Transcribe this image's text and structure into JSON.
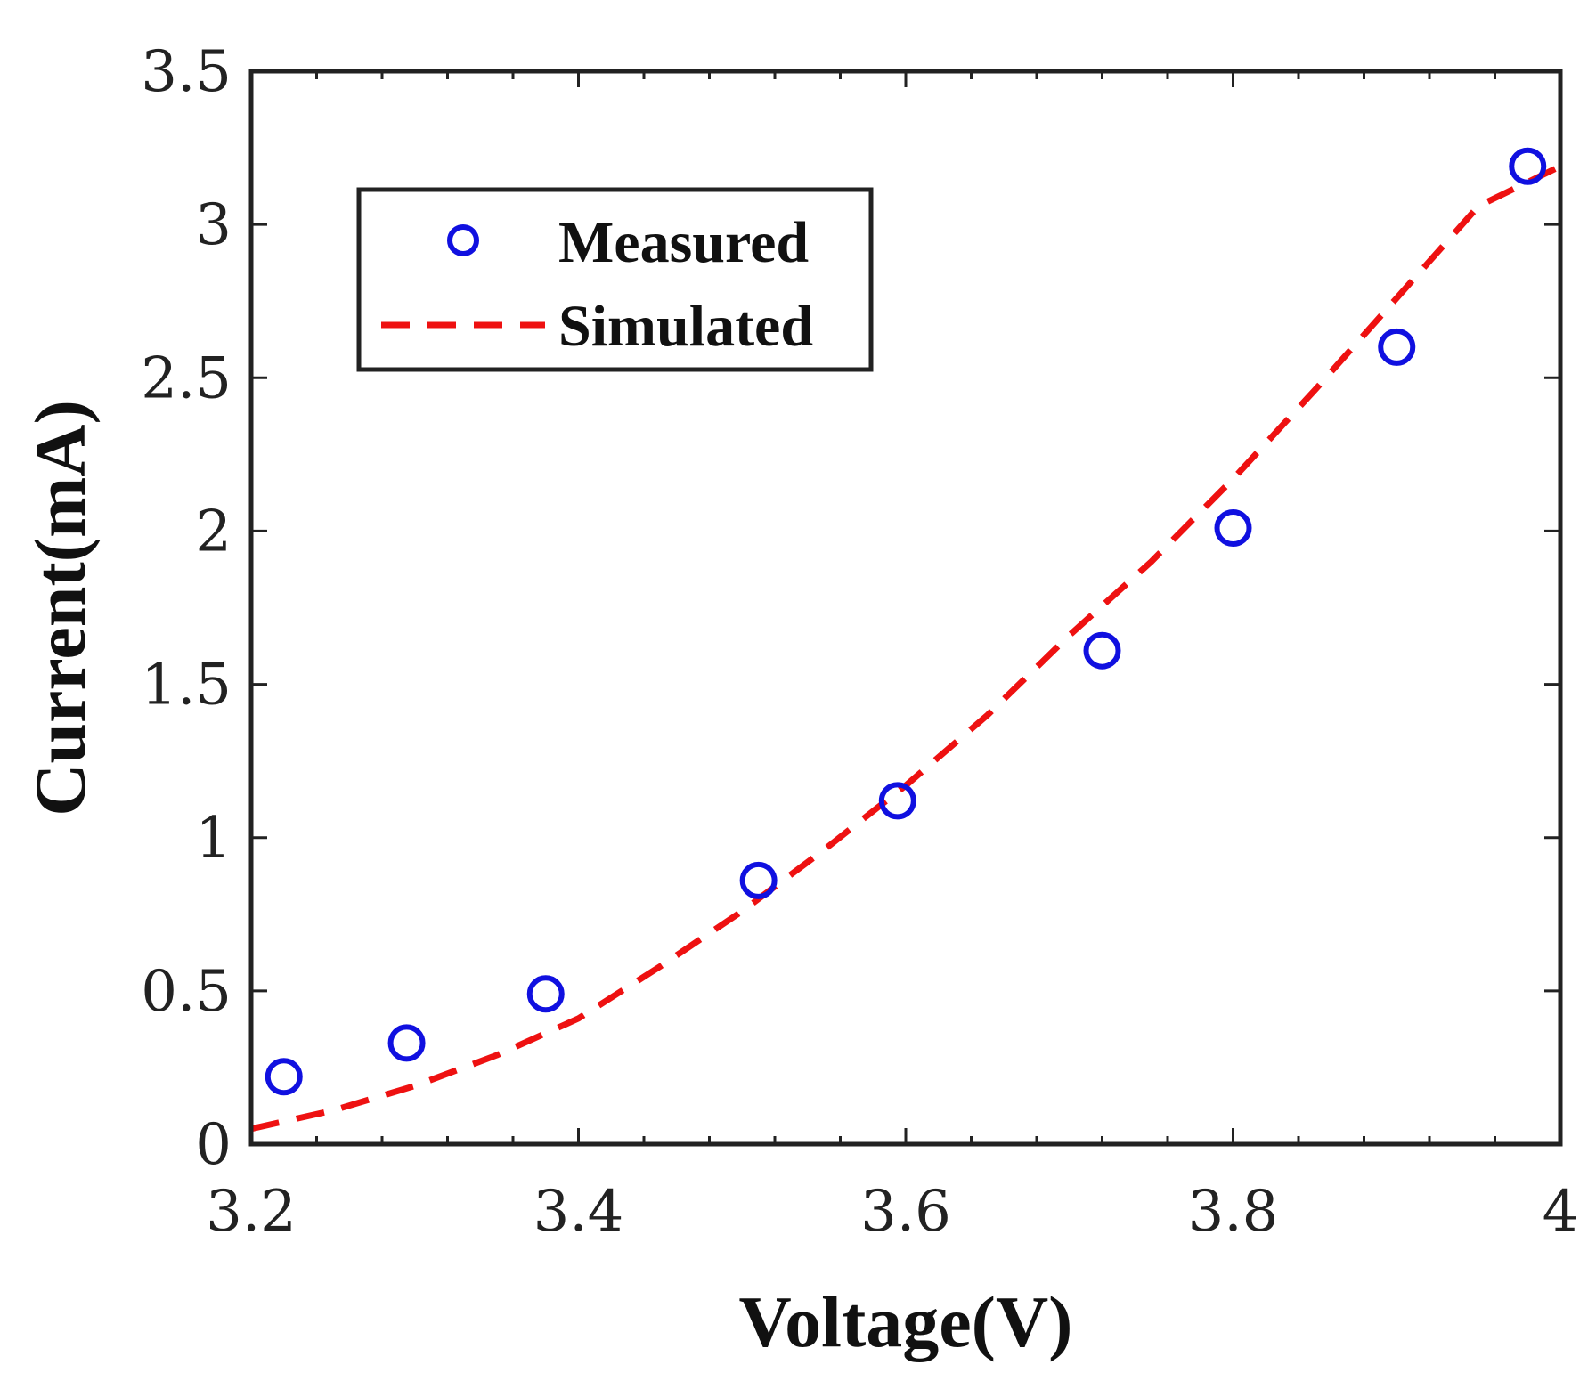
{
  "chart_data": {
    "type": "scatter",
    "title": "",
    "xlabel": "Voltage(V)",
    "ylabel": "Current(mA)",
    "xlim": [
      3.2,
      4.0
    ],
    "ylim": [
      0,
      3.5
    ],
    "xticks": [
      3.2,
      3.4,
      3.6,
      3.8,
      4.0
    ],
    "xtick_labels": [
      "3.2",
      "3.4",
      "3.6",
      "3.8",
      "4"
    ],
    "yticks": [
      0,
      0.5,
      1,
      1.5,
      2,
      2.5,
      3,
      3.5
    ],
    "ytick_labels": [
      "0",
      "0.5",
      "1",
      "1.5",
      "2",
      "2.5",
      "3",
      "3.5"
    ],
    "grid": false,
    "legend_position": "top-left",
    "series": [
      {
        "name": "Measured",
        "kind": "markers",
        "marker": "circle",
        "color": "#1010e0",
        "x": [
          3.22,
          3.295,
          3.38,
          3.51,
          3.595,
          3.72,
          3.8,
          3.9,
          3.98
        ],
        "y": [
          0.22,
          0.33,
          0.49,
          0.86,
          1.12,
          1.61,
          2.01,
          2.6,
          3.19
        ]
      },
      {
        "name": "Simulated",
        "kind": "line",
        "dash": "dashed",
        "color": "#ee1111",
        "x": [
          3.2,
          3.25,
          3.3,
          3.35,
          3.4,
          3.45,
          3.5,
          3.55,
          3.6,
          3.65,
          3.7,
          3.75,
          3.8,
          3.85,
          3.9,
          3.95,
          4.0
        ],
        "y": [
          0.05,
          0.11,
          0.19,
          0.29,
          0.41,
          0.58,
          0.76,
          0.96,
          1.17,
          1.4,
          1.66,
          1.9,
          2.17,
          2.46,
          2.76,
          3.06,
          3.19
        ]
      }
    ]
  }
}
